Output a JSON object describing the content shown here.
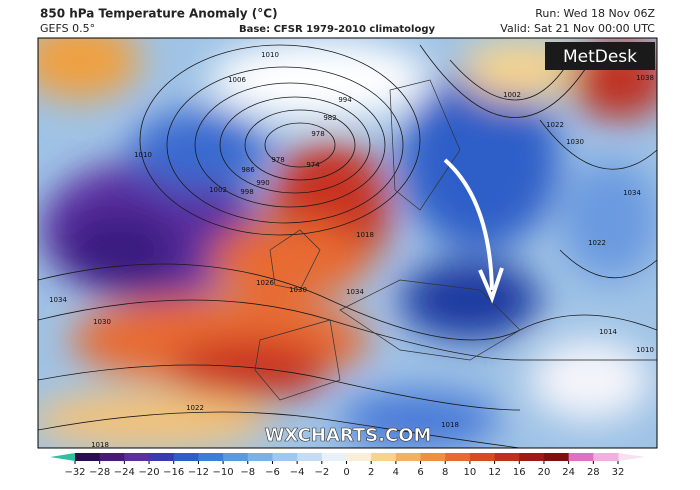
{
  "header": {
    "title": "850 hPa Temperature Anomaly (°C)",
    "model": "GEFS 0.5°",
    "base": "Base: CFSR 1979-2010 climatology",
    "run": "Run: Wed 18 Nov 06Z",
    "valid": "Valid: Sat 21 Nov 00:00 UTC"
  },
  "logo": "MetDesk",
  "watermark": "WXCHARTS.COM",
  "isobar_labels": [
    1006,
    1010,
    994,
    982,
    978,
    974,
    978,
    986,
    990,
    998,
    1002,
    1010,
    1034,
    1030,
    1026,
    1030,
    1034,
    1018,
    1018,
    1022,
    1018,
    1014,
    1022,
    1034,
    1030,
    1022,
    1002,
    1038,
    1010
  ],
  "colorbar": {
    "ticks": [
      {
        "value": -32,
        "label": "−32"
      },
      {
        "value": -28,
        "label": "−28"
      },
      {
        "value": -24,
        "label": "−24"
      },
      {
        "value": -20,
        "label": "−20"
      },
      {
        "value": -16,
        "label": "−16"
      },
      {
        "value": -12,
        "label": "−12"
      },
      {
        "value": -10,
        "label": "−10"
      },
      {
        "value": -8,
        "label": "−8"
      },
      {
        "value": -6,
        "label": "−6"
      },
      {
        "value": -4,
        "label": "−4"
      },
      {
        "value": -2,
        "label": "−2"
      },
      0,
      2,
      4,
      6,
      8,
      10,
      12,
      16,
      20,
      24,
      28,
      32
    ]
  }
}
